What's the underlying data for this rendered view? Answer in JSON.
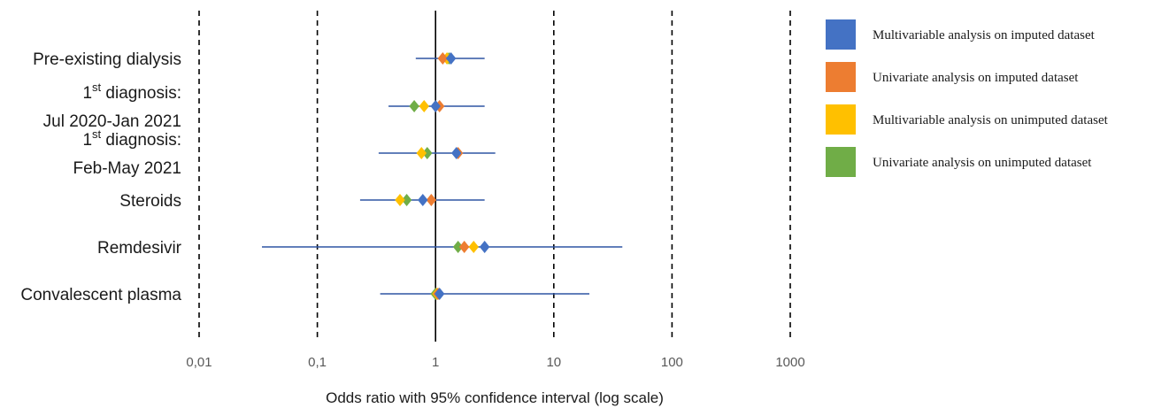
{
  "chart_data": {
    "type": "scatter",
    "title": "",
    "xlabel": "Odds ratio with 95% confidence interval (log scale)",
    "xscale": "log",
    "xlim": [
      0.01,
      1000
    ],
    "xticks": [
      {
        "value": 0.01,
        "label": "0,01"
      },
      {
        "value": 0.1,
        "label": "0,1"
      },
      {
        "value": 1,
        "label": "1"
      },
      {
        "value": 10,
        "label": "10"
      },
      {
        "value": 100,
        "label": "100"
      },
      {
        "value": 1000,
        "label": "1000"
      }
    ],
    "grid": "dashed vertical lines at decades, solid line at 1",
    "legend_position": "right",
    "categories": [
      {
        "lines": [
          {
            "text": "Pre-existing dialysis",
            "sup": ""
          }
        ],
        "ci": [
          0.68,
          2.6
        ]
      },
      {
        "lines": [
          {
            "text": "1",
            "sup": "st",
            "rest": " diagnosis:"
          },
          {
            "text": "Jul 2020-Jan 2021",
            "sup": ""
          }
        ],
        "ci": [
          0.4,
          2.6
        ]
      },
      {
        "lines": [
          {
            "text": "1",
            "sup": "st",
            "rest": " diagnosis:"
          },
          {
            "text": "Feb-May 2021",
            "sup": ""
          }
        ],
        "ci": [
          0.33,
          3.2
        ]
      },
      {
        "lines": [
          {
            "text": "Steroids",
            "sup": ""
          }
        ],
        "ci": [
          0.23,
          2.6
        ]
      },
      {
        "lines": [
          {
            "text": "Remdesivir",
            "sup": ""
          }
        ],
        "ci": [
          0.034,
          38
        ]
      },
      {
        "lines": [
          {
            "text": "Convalescent plasma",
            "sup": ""
          }
        ],
        "ci": [
          0.34,
          20
        ]
      }
    ],
    "series": [
      {
        "name": "Multivariable analysis on imputed dataset",
        "color": "#4472C4",
        "values": [
          1.35,
          1.0,
          1.5,
          0.78,
          2.6,
          1.08
        ]
      },
      {
        "name": "Univariate analysis on imputed dataset",
        "color": "#ED7D31",
        "values": [
          1.15,
          1.08,
          1.55,
          0.92,
          1.75,
          1.05
        ]
      },
      {
        "name": "Multivariable analysis on unimputed dataset",
        "color": "#FFC000",
        "values": [
          1.25,
          0.8,
          0.76,
          0.5,
          2.1,
          1.03
        ]
      },
      {
        "name": "Univariate analysis on unimputed dataset",
        "color": "#70AD47",
        "values": [
          1.3,
          0.66,
          0.85,
          0.57,
          1.55,
          1.0
        ]
      }
    ],
    "ci_color": "#2F55A4"
  }
}
